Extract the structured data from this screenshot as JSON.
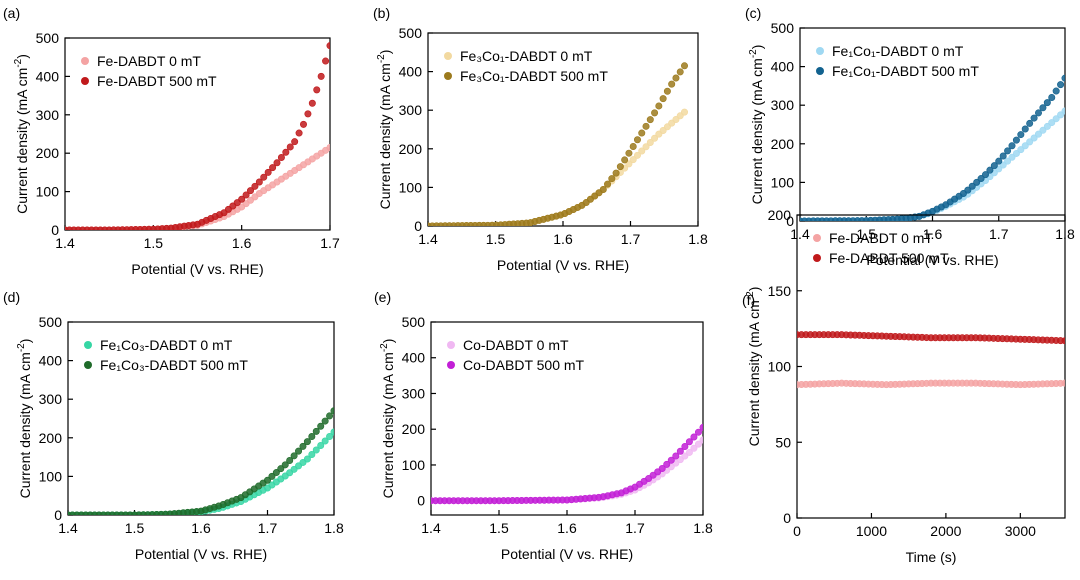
{
  "chart_data": [
    {
      "type": "scatter",
      "panel_label": "(a)",
      "xlabel": "Potential (V vs. RHE)",
      "ylabel": "Current density (mA cm",
      "ylabel_sup": "-2",
      "ylabel_close": ")",
      "xlim": [
        1.4,
        1.7
      ],
      "ylim": [
        0,
        500
      ],
      "xticks": [
        "1.4",
        "1.5",
        "1.6",
        "1.7"
      ],
      "yticks": [
        "0",
        "100",
        "200",
        "300",
        "400",
        "500"
      ],
      "legend": "top-left",
      "series": [
        {
          "name": "Fe-DABDT 0 mT",
          "color": "#f4a3a3",
          "x": [
            1.4,
            1.45,
            1.5,
            1.52,
            1.55,
            1.58,
            1.6,
            1.62,
            1.64,
            1.66,
            1.68,
            1.7
          ],
          "y": [
            0,
            0,
            2,
            4,
            12,
            35,
            60,
            95,
            125,
            155,
            185,
            215
          ]
        },
        {
          "name": "Fe-DABDT 500 mT",
          "color": "#c0191b",
          "x": [
            1.4,
            1.45,
            1.5,
            1.52,
            1.55,
            1.58,
            1.6,
            1.62,
            1.64,
            1.66,
            1.67,
            1.68,
            1.69,
            1.7
          ],
          "y": [
            0,
            0,
            2,
            5,
            15,
            45,
            80,
            125,
            175,
            230,
            275,
            330,
            400,
            480
          ]
        }
      ]
    },
    {
      "type": "scatter",
      "panel_label": "(b)",
      "xlabel": "Potential (V vs. RHE)",
      "ylabel": "Current density (mA cm",
      "ylabel_sup": "-2",
      "ylabel_close": ")",
      "xlim": [
        1.4,
        1.8
      ],
      "ylim": [
        0,
        500
      ],
      "xticks": [
        "1.4",
        "1.5",
        "1.6",
        "1.7",
        "1.8"
      ],
      "yticks": [
        "0",
        "100",
        "200",
        "300",
        "400",
        "500"
      ],
      "legend": "top-left",
      "series": [
        {
          "name": "Fe₃Co₁-DABDT 0 mT",
          "color": "#f2d9a0",
          "x": [
            1.4,
            1.5,
            1.55,
            1.6,
            1.63,
            1.66,
            1.68,
            1.7,
            1.72,
            1.74,
            1.76,
            1.78
          ],
          "y": [
            0,
            2,
            8,
            30,
            55,
            95,
            130,
            165,
            200,
            235,
            265,
            295
          ]
        },
        {
          "name": "Fe₃Co₁-DABDT 500 mT",
          "color": "#9c7a1d",
          "x": [
            1.4,
            1.5,
            1.55,
            1.6,
            1.63,
            1.66,
            1.68,
            1.7,
            1.72,
            1.74,
            1.76,
            1.78
          ],
          "y": [
            0,
            2,
            8,
            30,
            55,
            95,
            140,
            195,
            250,
            305,
            365,
            415
          ]
        }
      ]
    },
    {
      "type": "scatter",
      "panel_label": "(c)",
      "xlabel": "Potential (V vs. RHE)",
      "ylabel": "Current density (mA cm",
      "ylabel_sup": "-2",
      "ylabel_close": ")",
      "xlim": [
        1.4,
        1.8
      ],
      "ylim": [
        0,
        500
      ],
      "xticks": [
        "1.4",
        "1.5",
        "1.6",
        "1.7",
        "1.8"
      ],
      "yticks": [
        "0",
        "100",
        "200",
        "300",
        "400",
        "500"
      ],
      "legend": "top-left",
      "series": [
        {
          "name": "Fe₁Co₁-DABDT 0 mT",
          "color": "#9fd8f2",
          "x": [
            1.4,
            1.5,
            1.55,
            1.58,
            1.6,
            1.62,
            1.65,
            1.68,
            1.7,
            1.72,
            1.75,
            1.78,
            1.8
          ],
          "y": [
            0,
            1,
            5,
            12,
            22,
            38,
            65,
            105,
            135,
            165,
            210,
            255,
            285
          ]
        },
        {
          "name": "Fe₁Co₁-DABDT 500 mT",
          "color": "#12628f",
          "x": [
            1.4,
            1.5,
            1.55,
            1.58,
            1.6,
            1.62,
            1.65,
            1.68,
            1.7,
            1.72,
            1.75,
            1.78,
            1.8
          ],
          "y": [
            0,
            1,
            5,
            12,
            25,
            42,
            75,
            120,
            155,
            195,
            260,
            320,
            370
          ]
        }
      ]
    },
    {
      "type": "scatter",
      "panel_label": "(d)",
      "xlabel": "Potential (V vs. RHE)",
      "ylabel": "Current density (mA cm",
      "ylabel_sup": "-2",
      "ylabel_close": ")",
      "xlim": [
        1.4,
        1.8
      ],
      "ylim": [
        0,
        500
      ],
      "xticks": [
        "1.4",
        "1.5",
        "1.6",
        "1.7",
        "1.8"
      ],
      "yticks": [
        "0",
        "100",
        "200",
        "300",
        "400",
        "500"
      ],
      "legend": "top-left",
      "series": [
        {
          "name": "Fe₁Co₃-DABDT 0 mT",
          "color": "#36d6a4",
          "x": [
            1.4,
            1.5,
            1.55,
            1.6,
            1.63,
            1.66,
            1.7,
            1.73,
            1.76,
            1.78,
            1.8
          ],
          "y": [
            0,
            0,
            2,
            8,
            18,
            35,
            70,
            105,
            145,
            180,
            215
          ]
        },
        {
          "name": "Fe₁Co₃-DABDT 500 mT",
          "color": "#1f6b2a",
          "x": [
            1.4,
            1.5,
            1.55,
            1.6,
            1.63,
            1.66,
            1.7,
            1.73,
            1.76,
            1.78,
            1.8
          ],
          "y": [
            0,
            0,
            2,
            10,
            25,
            45,
            90,
            135,
            190,
            230,
            270
          ]
        }
      ]
    },
    {
      "type": "scatter",
      "panel_label": "(e)",
      "xlabel": "Potential (V vs. RHE)",
      "ylabel": "Current density (mA cm",
      "ylabel_sup": "-2",
      "ylabel_close": ")",
      "xlim": [
        1.4,
        1.8
      ],
      "ylim": [
        -40,
        500
      ],
      "xticks": [
        "1.4",
        "1.5",
        "1.6",
        "1.7",
        "1.8"
      ],
      "yticks": [
        "0",
        "100",
        "200",
        "300",
        "400",
        "500"
      ],
      "ytick_values": [
        0,
        100,
        200,
        300,
        400,
        500
      ],
      "legend": "top-left",
      "series": [
        {
          "name": "Co-DABDT 0 mT",
          "color": "#f0b8f2",
          "x": [
            1.4,
            1.5,
            1.6,
            1.65,
            1.68,
            1.7,
            1.72,
            1.74,
            1.76,
            1.78,
            1.8
          ],
          "y": [
            0,
            0,
            2,
            8,
            18,
            30,
            50,
            75,
            105,
            135,
            170
          ]
        },
        {
          "name": "Co-DABDT 500 mT",
          "color": "#c21fd6",
          "x": [
            1.4,
            1.5,
            1.6,
            1.65,
            1.68,
            1.7,
            1.72,
            1.74,
            1.76,
            1.78,
            1.8
          ],
          "y": [
            0,
            0,
            2,
            10,
            22,
            38,
            62,
            90,
            125,
            165,
            205
          ]
        }
      ]
    },
    {
      "type": "scatter",
      "panel_label": "(f)",
      "xlabel": "Time (s)",
      "ylabel": "Current density (mA cm",
      "ylabel_sup": "-2",
      "ylabel_close": ")",
      "xlim": [
        0,
        3600
      ],
      "ylim": [
        0,
        200
      ],
      "xticks": [
        "0",
        "1000",
        "2000",
        "3000"
      ],
      "xtick_values": [
        0,
        1000,
        2000,
        3000
      ],
      "yticks": [
        "0",
        "50",
        "100",
        "150",
        "200"
      ],
      "legend": "top-left",
      "series": [
        {
          "name": "Fe-DABDT 0 mT",
          "color": "#f4a3a3",
          "x": [
            0,
            600,
            1200,
            1800,
            2400,
            3000,
            3600
          ],
          "y": [
            88,
            89,
            88,
            89,
            89,
            88,
            89
          ]
        },
        {
          "name": "Fe-DABDT 500 mT",
          "color": "#c0191b",
          "x": [
            0,
            600,
            1200,
            1800,
            2400,
            3000,
            3600
          ],
          "y": [
            121,
            121,
            120,
            119,
            119,
            118,
            117
          ]
        }
      ]
    }
  ]
}
